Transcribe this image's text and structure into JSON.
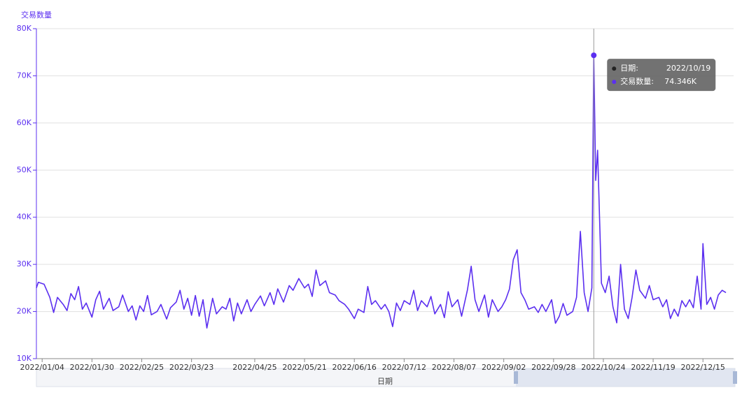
{
  "chart_data": {
    "type": "line",
    "y_label": "交易数量",
    "x_label": "日期",
    "xlim": [
      "2022/01/01",
      "2022/12/31"
    ],
    "xticks": [
      "2022/01/04",
      "2022/01/30",
      "2022/02/25",
      "2022/03/23",
      "2022/04/25",
      "2022/05/21",
      "2022/06/16",
      "2022/07/12",
      "2022/08/07",
      "2022/09/02",
      "2022/09/28",
      "2022/10/24",
      "2022/11/19",
      "2022/12/15"
    ],
    "ylim": [
      10000,
      80000
    ],
    "yticks": [
      {
        "value": 10000,
        "label": "10K"
      },
      {
        "value": 20000,
        "label": "20K"
      },
      {
        "value": 30000,
        "label": "30K"
      },
      {
        "value": 40000,
        "label": "40K"
      },
      {
        "value": 50000,
        "label": "50K"
      },
      {
        "value": 60000,
        "label": "60K"
      },
      {
        "value": 70000,
        "label": "70K"
      },
      {
        "value": 80000,
        "label": "80K"
      }
    ],
    "grid": true,
    "x": [
      "2022/01/01",
      "2022/01/02",
      "2022/01/05",
      "2022/01/08",
      "2022/01/10",
      "2022/01/12",
      "2022/01/15",
      "2022/01/17",
      "2022/01/19",
      "2022/01/21",
      "2022/01/23",
      "2022/01/25",
      "2022/01/27",
      "2022/01/30",
      "2022/02/01",
      "2022/02/03",
      "2022/02/05",
      "2022/02/08",
      "2022/02/10",
      "2022/02/13",
      "2022/02/15",
      "2022/02/18",
      "2022/02/20",
      "2022/02/22",
      "2022/02/24",
      "2022/02/26",
      "2022/02/28",
      "2022/03/02",
      "2022/03/05",
      "2022/03/07",
      "2022/03/10",
      "2022/03/12",
      "2022/03/15",
      "2022/03/17",
      "2022/03/19",
      "2022/03/21",
      "2022/03/23",
      "2022/03/25",
      "2022/03/27",
      "2022/03/29",
      "2022/03/31",
      "2022/04/03",
      "2022/04/05",
      "2022/04/08",
      "2022/04/10",
      "2022/04/12",
      "2022/04/14",
      "2022/04/16",
      "2022/04/18",
      "2022/04/21",
      "2022/04/23",
      "2022/04/25",
      "2022/04/28",
      "2022/04/30",
      "2022/05/03",
      "2022/05/05",
      "2022/05/07",
      "2022/05/10",
      "2022/05/13",
      "2022/05/15",
      "2022/05/18",
      "2022/05/21",
      "2022/05/23",
      "2022/05/25",
      "2022/05/27",
      "2022/05/29",
      "2022/06/01",
      "2022/06/03",
      "2022/06/06",
      "2022/06/08",
      "2022/06/11",
      "2022/06/13",
      "2022/06/16",
      "2022/06/18",
      "2022/06/21",
      "2022/06/23",
      "2022/06/25",
      "2022/06/27",
      "2022/06/30",
      "2022/07/02",
      "2022/07/04",
      "2022/07/06",
      "2022/07/08",
      "2022/07/10",
      "2022/07/12",
      "2022/07/15",
      "2022/07/17",
      "2022/07/19",
      "2022/07/21",
      "2022/07/24",
      "2022/07/26",
      "2022/07/28",
      "2022/07/31",
      "2022/08/02",
      "2022/08/04",
      "2022/08/06",
      "2022/08/09",
      "2022/08/11",
      "2022/08/14",
      "2022/08/16",
      "2022/08/18",
      "2022/08/20",
      "2022/08/23",
      "2022/08/25",
      "2022/08/27",
      "2022/08/30",
      "2022/09/01",
      "2022/09/03",
      "2022/09/05",
      "2022/09/07",
      "2022/09/09",
      "2022/09/11",
      "2022/09/13",
      "2022/09/15",
      "2022/09/18",
      "2022/09/20",
      "2022/09/22",
      "2022/09/24",
      "2022/09/27",
      "2022/09/29",
      "2022/10/01",
      "2022/10/03",
      "2022/10/05",
      "2022/10/08",
      "2022/10/10",
      "2022/10/12",
      "2022/10/14",
      "2022/10/16",
      "2022/10/18",
      "2022/10/19",
      "2022/10/20",
      "2022/10/21",
      "2022/10/23",
      "2022/10/25",
      "2022/10/27",
      "2022/10/29",
      "2022/10/31",
      "2022/11/02",
      "2022/11/04",
      "2022/11/06",
      "2022/11/08",
      "2022/11/10",
      "2022/11/12",
      "2022/11/15",
      "2022/11/17",
      "2022/11/19",
      "2022/11/22",
      "2022/11/24",
      "2022/11/26",
      "2022/11/28",
      "2022/11/30",
      "2022/12/02",
      "2022/12/04",
      "2022/12/06",
      "2022/12/08",
      "2022/12/10",
      "2022/12/12",
      "2022/12/14",
      "2022/12/15",
      "2022/12/17",
      "2022/12/19",
      "2022/12/21",
      "2022/12/23",
      "2022/12/25",
      "2022/12/27"
    ],
    "series": [
      {
        "name": "交易数量",
        "color": "#5b2ff0",
        "values": [
          25000,
          26200,
          25800,
          23000,
          19800,
          23000,
          21500,
          20200,
          23800,
          22500,
          25300,
          20500,
          21800,
          18800,
          22500,
          24300,
          20500,
          22800,
          20200,
          21000,
          23500,
          20000,
          21200,
          18200,
          21200,
          20000,
          23400,
          19300,
          20000,
          21500,
          18400,
          20800,
          22000,
          24500,
          20500,
          22800,
          19200,
          23400,
          19000,
          22500,
          16500,
          22800,
          19500,
          21000,
          20500,
          22800,
          18000,
          21800,
          19500,
          22500,
          20000,
          21500,
          23300,
          21200,
          24000,
          21500,
          24800,
          22000,
          25500,
          24500,
          27000,
          25000,
          25800,
          23200,
          28800,
          25500,
          26500,
          24000,
          23500,
          22300,
          21500,
          20500,
          18500,
          20500,
          19800,
          25300,
          21500,
          22300,
          20500,
          21500,
          20000,
          16800,
          21800,
          20200,
          22300,
          21500,
          24500,
          20200,
          22300,
          21000,
          23200,
          19500,
          21500,
          18700,
          24200,
          21000,
          22500,
          19000,
          24500,
          29600,
          22500,
          20000,
          23500,
          18800,
          22500,
          20000,
          21000,
          22500,
          24800,
          31000,
          33100,
          24000,
          22500,
          20500,
          21000,
          19800,
          21500,
          20000,
          22500,
          17500,
          19000,
          21700,
          19200,
          20000,
          23000,
          37000,
          24000,
          20000,
          25000,
          74346,
          47800,
          54200,
          26000,
          24000,
          27500,
          21000,
          17600,
          30000,
          20500,
          18500,
          23000,
          28800,
          24500,
          22800,
          25500,
          22500,
          23000,
          21000,
          22500,
          18500,
          20500,
          19000,
          22300,
          21000,
          22500,
          20800,
          27500,
          20500,
          34400,
          21500,
          23000,
          20500,
          23500,
          24500,
          24000
        ]
      }
    ],
    "tooltip": {
      "date_label": "日期:",
      "date": "2022/10/19",
      "series_label": "交易数量:",
      "value_label": "74.346K"
    }
  }
}
